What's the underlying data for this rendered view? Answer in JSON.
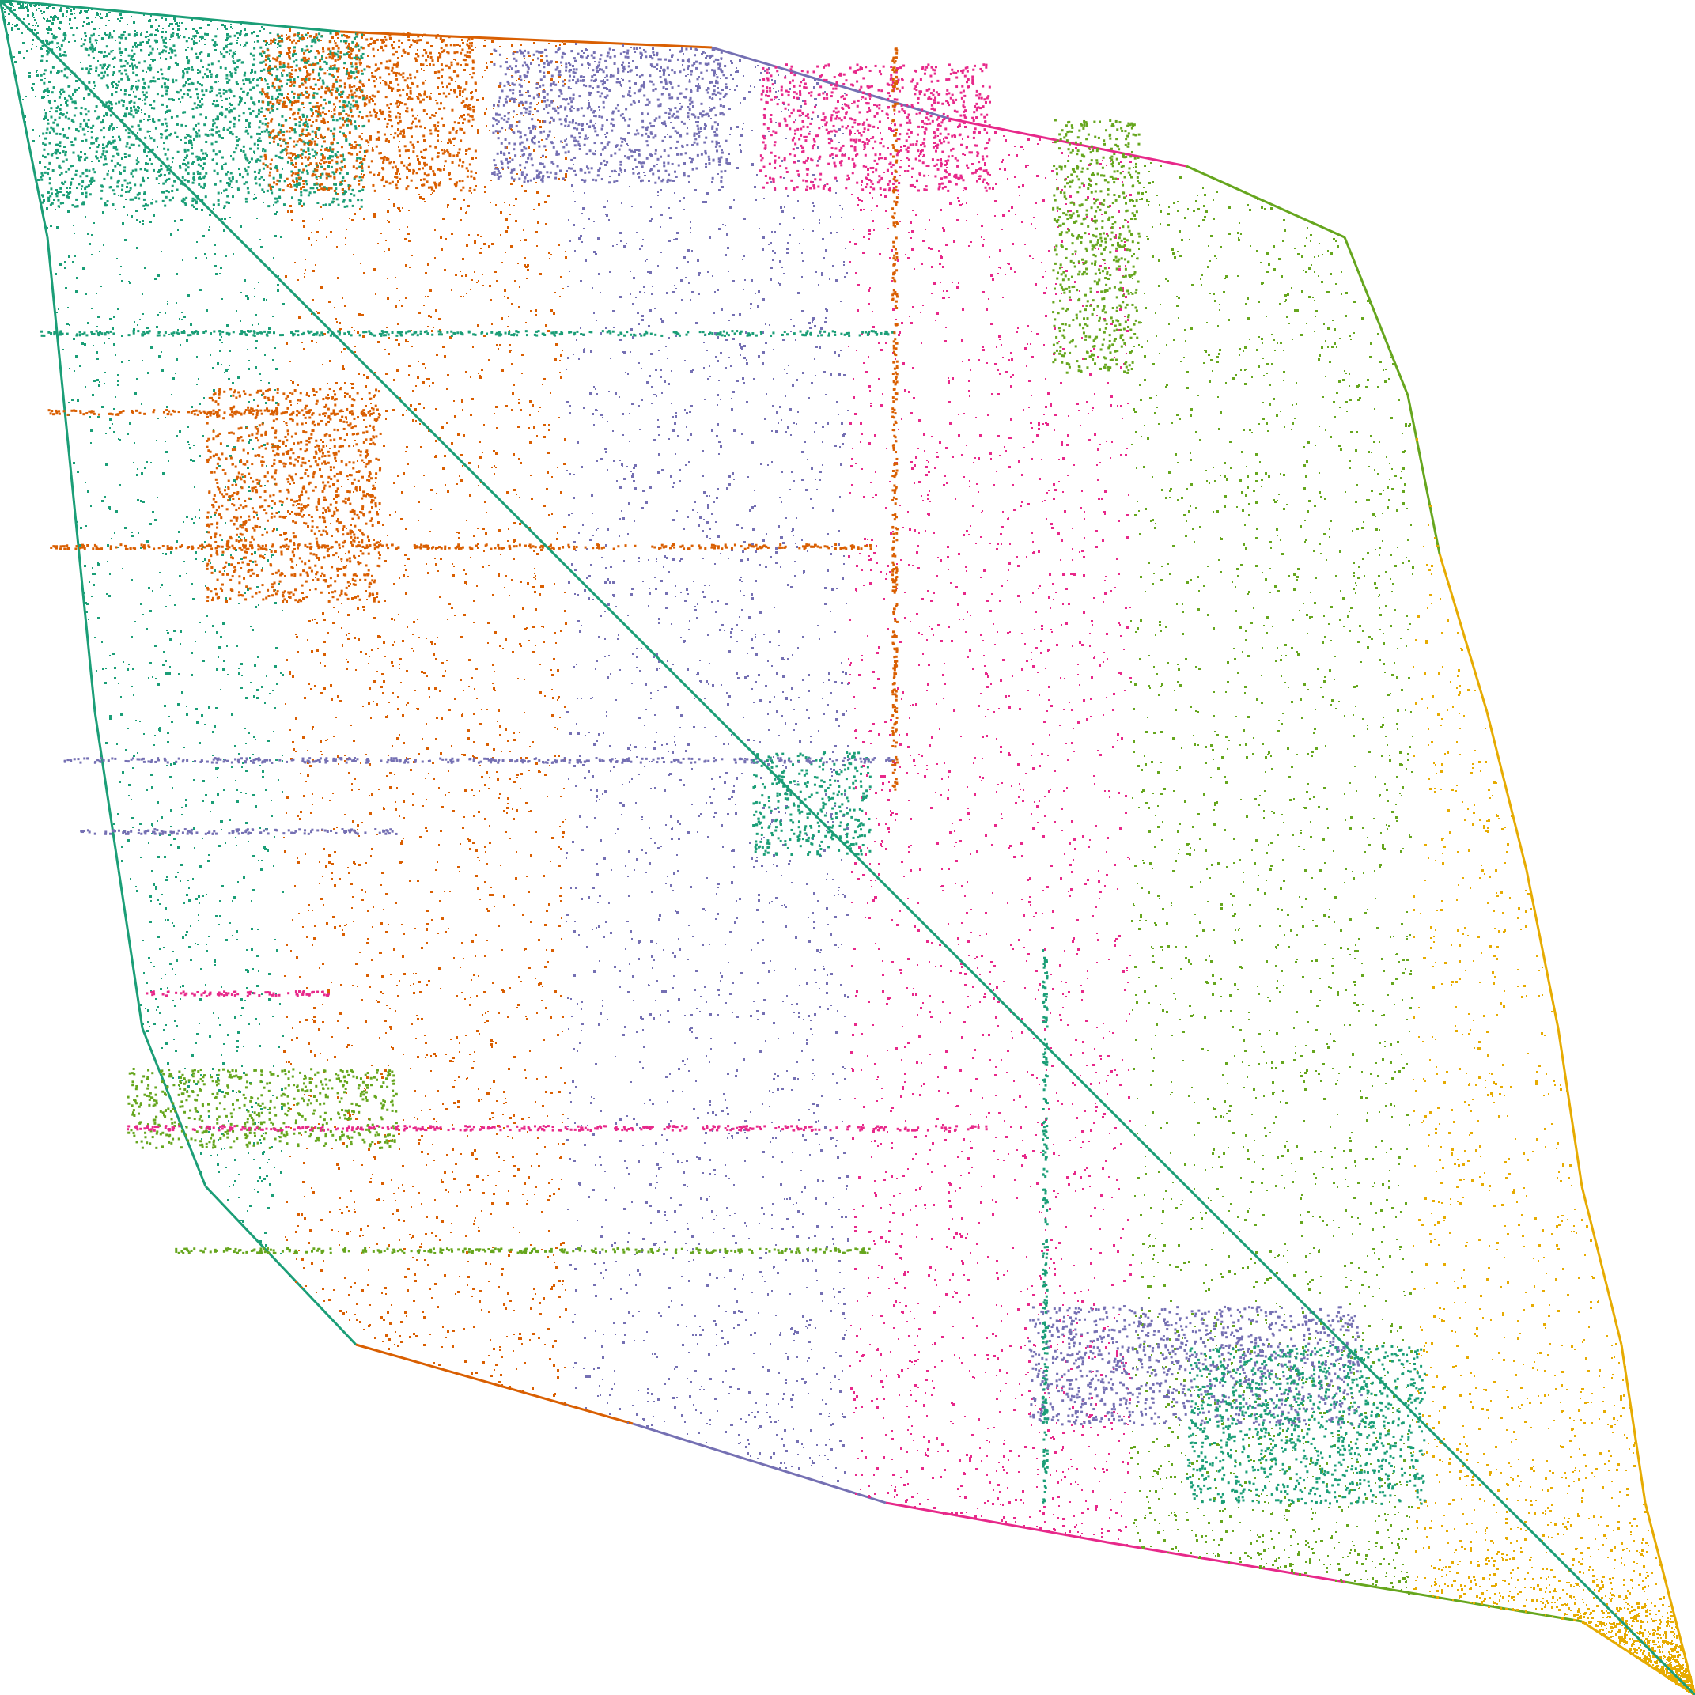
{
  "chart_data": {
    "type": "scatter",
    "kind": "sparse-matrix-nonzero-pattern",
    "title": "",
    "xlabel": "",
    "ylabel": "",
    "axes_visible": false,
    "grid": false,
    "legend": "none",
    "matrix_shape": [
      2143,
      2143
    ],
    "diagonal": {
      "from": [
        0,
        0
      ],
      "to": [
        2143,
        2143
      ],
      "color": "#1b9e77"
    },
    "palette": [
      "#1b9e77",
      "#d95f02",
      "#7570b3",
      "#e7298a",
      "#66a61e",
      "#e6ab02"
    ],
    "series": [
      {
        "color_index": 0,
        "rows": [
          40,
          1080
        ],
        "cols": [
          50,
          420
        ]
      },
      {
        "color_index": 1,
        "rows": [
          40,
          620
        ],
        "cols": [
          330,
          620
        ]
      },
      {
        "color_index": 2,
        "rows": [
          60,
          960
        ],
        "cols": [
          600,
          1130
        ]
      },
      {
        "color_index": 3,
        "rows": [
          80,
          1040
        ],
        "cols": [
          960,
          1440
        ]
      },
      {
        "color_index": 4,
        "rows": [
          120,
          1500
        ],
        "cols": [
          1300,
          1720
        ]
      },
      {
        "color_index": 5,
        "rows": [
          200,
          400
        ],
        "cols": [
          1580,
          1720
        ]
      }
    ],
    "envelope": {
      "upper": [
        [
          0,
          0
        ],
        [
          430,
          40
        ],
        [
          900,
          60
        ],
        [
          1200,
          150
        ],
        [
          1500,
          210
        ],
        [
          1700,
          300
        ],
        [
          1780,
          500
        ],
        [
          1820,
          700
        ],
        [
          1880,
          900
        ],
        [
          1930,
          1100
        ],
        [
          1970,
          1300
        ],
        [
          2000,
          1500
        ],
        [
          2050,
          1700
        ],
        [
          2080,
          1900
        ],
        [
          2143,
          2143
        ]
      ],
      "lower": [
        [
          0,
          0
        ],
        [
          60,
          300
        ],
        [
          90,
          600
        ],
        [
          120,
          900
        ],
        [
          150,
          1100
        ],
        [
          180,
          1300
        ],
        [
          260,
          1500
        ],
        [
          450,
          1700
        ],
        [
          800,
          1800
        ],
        [
          1120,
          1900
        ],
        [
          1400,
          1950
        ],
        [
          1700,
          2000
        ],
        [
          2000,
          2050
        ],
        [
          2143,
          2143
        ]
      ]
    },
    "dense_blocks": [
      {
        "row": [
          40,
          260
        ],
        "col": [
          50,
          460
        ],
        "color_index": 0
      },
      {
        "row": [
          40,
          240
        ],
        "col": [
          330,
          600
        ],
        "color_index": 1
      },
      {
        "row": [
          60,
          230
        ],
        "col": [
          620,
          920
        ],
        "color_index": 2
      },
      {
        "row": [
          80,
          240
        ],
        "col": [
          960,
          1250
        ],
        "color_index": 3
      },
      {
        "row": [
          150,
          470
        ],
        "col": [
          1330,
          1440
        ],
        "color_index": 4
      },
      {
        "row": [
          490,
          760
        ],
        "col": [
          260,
          480
        ],
        "color_index": 1
      },
      {
        "row": [
          950,
          1080
        ],
        "col": [
          950,
          1100
        ],
        "color_index": 0
      },
      {
        "row": [
          1350,
          1450
        ],
        "col": [
          160,
          500
        ],
        "color_index": 4
      },
      {
        "row": [
          1650,
          1800
        ],
        "col": [
          1300,
          1720
        ],
        "color_index": 2
      },
      {
        "row": [
          1700,
          1900
        ],
        "col": [
          1500,
          1800
        ],
        "color_index": 0
      }
    ],
    "bands": [
      {
        "axis": "row",
        "at": 420,
        "span": [
          50,
          1130
        ],
        "color_index": 0
      },
      {
        "axis": "row",
        "at": 520,
        "span": [
          60,
          480
        ],
        "color_index": 1
      },
      {
        "axis": "row",
        "at": 690,
        "span": [
          60,
          1100
        ],
        "color_index": 1
      },
      {
        "axis": "row",
        "at": 960,
        "span": [
          80,
          1130
        ],
        "color_index": 2
      },
      {
        "axis": "row",
        "at": 1050,
        "span": [
          100,
          500
        ],
        "color_index": 2
      },
      {
        "axis": "row",
        "at": 1255,
        "span": [
          180,
          420
        ],
        "color_index": 3
      },
      {
        "axis": "row",
        "at": 1425,
        "span": [
          160,
          1250
        ],
        "color_index": 3
      },
      {
        "axis": "row",
        "at": 1580,
        "span": [
          220,
          1100
        ],
        "color_index": 4
      },
      {
        "axis": "col",
        "at": 1130,
        "span": [
          60,
          1000
        ],
        "color_index": 1
      },
      {
        "axis": "col",
        "at": 1320,
        "span": [
          1200,
          1900
        ],
        "color_index": 0
      }
    ]
  }
}
